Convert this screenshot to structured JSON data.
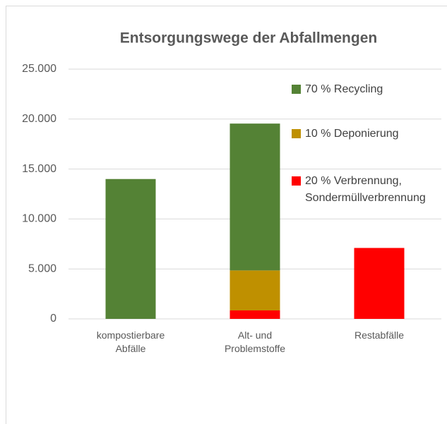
{
  "chart_data": {
    "type": "stacked_bar",
    "title": "Entsorgungswege der Abfallmengen",
    "categories": [
      "kompostierbare Abfälle",
      "Alt- und Problemstoffe",
      "Restabfälle"
    ],
    "series": [
      {
        "name": "20 % Verbrennung, Sondermüllverbrennung",
        "color": "#ff0000",
        "values": [
          0,
          850,
          7100
        ]
      },
      {
        "name": "10 % Deponierung",
        "color": "#bf9000",
        "values": [
          0,
          4000,
          0
        ]
      },
      {
        "name": "70 % Recycling",
        "color": "#548235",
        "values": [
          14000,
          14700,
          0
        ]
      }
    ],
    "ylim": [
      0,
      25000
    ],
    "yticks": [
      0,
      {
        "value": 5000,
        "label": "5.000"
      },
      {
        "value": 10000,
        "label": "10.000"
      },
      {
        "value": 15000,
        "label": "15.000"
      },
      {
        "value": 20000,
        "label": "20.000"
      },
      {
        "value": 25000,
        "label": "25.000"
      }
    ],
    "grid": true,
    "legend": "right"
  }
}
